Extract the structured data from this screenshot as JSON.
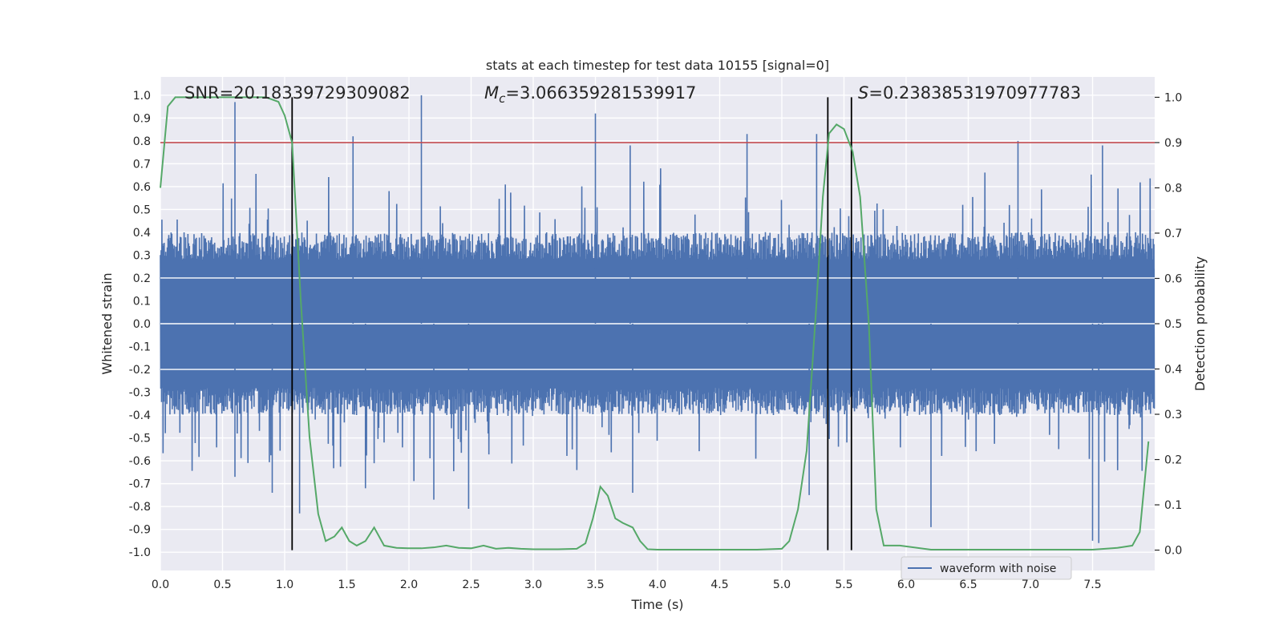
{
  "chart_data": {
    "type": "line",
    "title": "stats at each timestep for test data 10155 [signal=0]",
    "xlabel": "Time (s)",
    "ylabel": "Whitened strain",
    "ylabel_right": "Detection probability",
    "xlim": [
      0,
      8
    ],
    "ylim": [
      -1.08,
      1.08
    ],
    "ylim_right": [
      -0.045,
      1.045
    ],
    "x_ticks": [
      0.0,
      0.5,
      1.0,
      1.5,
      2.0,
      2.5,
      3.0,
      3.5,
      4.0,
      4.5,
      5.0,
      5.5,
      6.0,
      6.5,
      7.0,
      7.5
    ],
    "x_tick_labels": [
      "0.0",
      "0.5",
      "1.0",
      "1.5",
      "2.0",
      "2.5",
      "3.0",
      "3.5",
      "4.0",
      "4.5",
      "5.0",
      "5.5",
      "6.0",
      "6.5",
      "7.0",
      "7.5"
    ],
    "y_ticks": [
      1.0,
      0.9,
      0.8,
      0.7,
      0.6,
      0.5,
      0.4,
      0.3,
      0.2,
      0.1,
      0.0,
      -0.1,
      -0.2,
      -0.3,
      -0.4,
      -0.5,
      -0.6,
      -0.7,
      -0.8,
      -0.9,
      -1.0
    ],
    "y_tick_labels": [
      "1.0",
      "0.9",
      "0.8",
      "0.7",
      "0.6",
      "0.5",
      "0.4",
      "0.3",
      "0.2",
      "0.1",
      "0.0",
      "-0.1",
      "-0.2",
      "-0.3",
      "-0.4",
      "-0.5",
      "-0.6",
      "-0.7",
      "-0.8",
      "-0.9",
      "-1.0"
    ],
    "y_right_ticks": [
      1.0,
      0.9,
      0.8,
      0.7,
      0.6,
      0.5,
      0.4,
      0.3,
      0.2,
      0.1,
      0.0
    ],
    "y_right_tick_labels": [
      "1.0",
      "0.9",
      "0.8",
      "0.7",
      "0.6",
      "0.5",
      "0.4",
      "0.3",
      "0.2",
      "0.1",
      "0.0"
    ],
    "grid": true,
    "legend": {
      "location": "lower right",
      "entries": [
        "waveform with noise"
      ]
    },
    "annotations": {
      "snr": "SNR=20.18339729309082",
      "mc_symbol": "M",
      "mc_sub": "c",
      "mc_value": "=3.066359281539917",
      "s_symbol": "S",
      "s_value": "=0.23838531970977783"
    },
    "threshold_line": {
      "y_right": 0.9,
      "color": "#c44e52"
    },
    "vertical_lines": [
      {
        "x": 1.06,
        "y_right_range": [
          0.0,
          1.0
        ]
      },
      {
        "x": 5.37,
        "y_right_range": [
          0.0,
          1.0
        ]
      },
      {
        "x": 5.56,
        "y_right_range": [
          0.0,
          1.0
        ]
      }
    ],
    "waveform": {
      "name": "waveform with noise",
      "color": "#4c72b0",
      "base_amplitude": 0.28,
      "peak_spikes": [
        {
          "x": 0.6,
          "y": 0.97
        },
        {
          "x": 0.6,
          "y": -0.67
        },
        {
          "x": 0.9,
          "y": -0.74
        },
        {
          "x": 1.12,
          "y": -0.83
        },
        {
          "x": 1.55,
          "y": 0.82
        },
        {
          "x": 1.65,
          "y": -0.72
        },
        {
          "x": 2.1,
          "y": 1.0
        },
        {
          "x": 2.2,
          "y": -0.77
        },
        {
          "x": 2.48,
          "y": -0.81
        },
        {
          "x": 3.5,
          "y": 0.92
        },
        {
          "x": 3.78,
          "y": 0.78
        },
        {
          "x": 3.8,
          "y": -0.74
        },
        {
          "x": 4.72,
          "y": 0.83
        },
        {
          "x": 5.28,
          "y": 0.83
        },
        {
          "x": 5.22,
          "y": -0.75
        },
        {
          "x": 6.2,
          "y": -0.89
        },
        {
          "x": 6.9,
          "y": 0.8
        },
        {
          "x": 7.5,
          "y": -0.95
        },
        {
          "x": 7.55,
          "y": -0.96
        },
        {
          "x": 7.58,
          "y": 0.78
        }
      ]
    },
    "probability": {
      "name": "Detection probability",
      "color": "#55a868",
      "x": [
        0.0,
        0.06,
        0.12,
        0.2,
        0.3,
        0.5,
        0.7,
        0.85,
        0.95,
        1.0,
        1.06,
        1.13,
        1.2,
        1.27,
        1.33,
        1.4,
        1.46,
        1.52,
        1.58,
        1.65,
        1.72,
        1.8,
        1.9,
        2.0,
        2.1,
        2.2,
        2.3,
        2.4,
        2.5,
        2.6,
        2.7,
        2.8,
        2.9,
        3.0,
        3.2,
        3.35,
        3.42,
        3.48,
        3.54,
        3.6,
        3.66,
        3.72,
        3.8,
        3.86,
        3.92,
        4.0,
        4.2,
        4.5,
        4.8,
        5.0,
        5.06,
        5.13,
        5.2,
        5.28,
        5.33,
        5.38,
        5.44,
        5.5,
        5.57,
        5.63,
        5.7,
        5.76,
        5.82,
        5.95,
        6.2,
        6.6,
        7.0,
        7.3,
        7.5,
        7.7,
        7.82,
        7.88,
        7.95
      ],
      "y": [
        0.8,
        0.98,
        1.0,
        1.0,
        1.0,
        1.0,
        1.0,
        1.0,
        0.99,
        0.96,
        0.9,
        0.55,
        0.25,
        0.08,
        0.02,
        0.03,
        0.05,
        0.02,
        0.01,
        0.02,
        0.05,
        0.01,
        0.005,
        0.004,
        0.004,
        0.006,
        0.01,
        0.005,
        0.004,
        0.01,
        0.003,
        0.005,
        0.003,
        0.002,
        0.002,
        0.003,
        0.015,
        0.07,
        0.14,
        0.12,
        0.07,
        0.06,
        0.05,
        0.02,
        0.002,
        0.001,
        0.001,
        0.001,
        0.001,
        0.003,
        0.02,
        0.09,
        0.22,
        0.55,
        0.78,
        0.92,
        0.94,
        0.93,
        0.88,
        0.78,
        0.5,
        0.09,
        0.01,
        0.01,
        0.001,
        0.001,
        0.001,
        0.001,
        0.001,
        0.005,
        0.01,
        0.04,
        0.24
      ]
    }
  }
}
